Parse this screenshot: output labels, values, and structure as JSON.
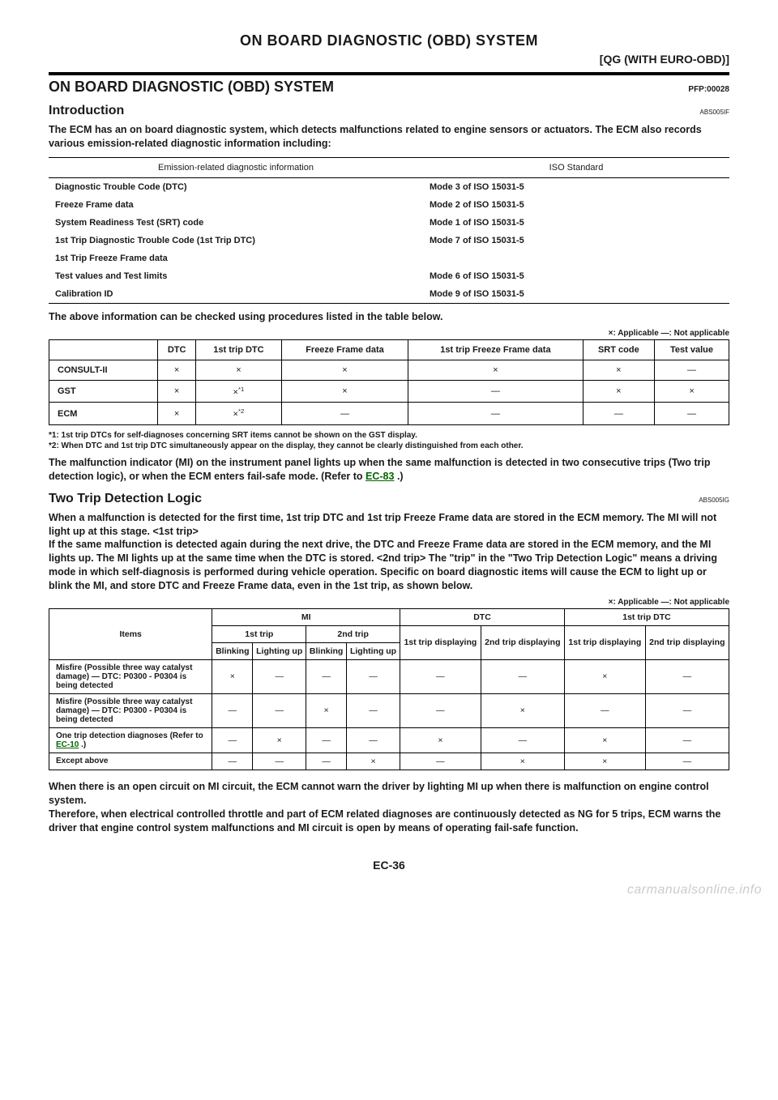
{
  "header": {
    "mainTitle": "ON BOARD DIAGNOSTIC (OBD) SYSTEM",
    "subTitle": "[QG (WITH EURO-OBD)]"
  },
  "section": {
    "title": "ON BOARD DIAGNOSTIC (OBD) SYSTEM",
    "pfp": "PFP:00028"
  },
  "intro": {
    "title": "Introduction",
    "code": "ABS005IF",
    "para": "The ECM has an on board diagnostic system, which detects malfunctions related to engine sensors or actuators. The ECM also records various emission-related diagnostic information including:"
  },
  "table1": {
    "headers": [
      "Emission-related diagnostic information",
      "ISO Standard"
    ],
    "rows": [
      [
        "Diagnostic Trouble Code (DTC)",
        "Mode 3 of ISO 15031-5"
      ],
      [
        "Freeze Frame data",
        "Mode 2 of ISO 15031-5"
      ],
      [
        "System Readiness Test (SRT) code",
        "Mode 1 of ISO 15031-5"
      ],
      [
        "1st Trip Diagnostic Trouble Code (1st Trip DTC)",
        "Mode 7 of ISO 15031-5"
      ],
      [
        "1st Trip Freeze Frame data",
        ""
      ],
      [
        "Test values and Test limits",
        "Mode 6 of ISO 15031-5"
      ],
      [
        "Calibration ID",
        "Mode 9 of ISO 15031-5"
      ]
    ]
  },
  "afterTable1": "The above information can be checked using procedures listed in the table below.",
  "legend": "×: Applicable    —: Not applicable",
  "table2": {
    "headers": [
      "",
      "DTC",
      "1st trip DTC",
      "Freeze Frame data",
      "1st trip Freeze Frame data",
      "SRT code",
      "Test value"
    ],
    "rows": [
      [
        "CONSULT-II",
        "×",
        "×",
        "×",
        "×",
        "×",
        "—"
      ],
      [
        "GST",
        "×",
        "×*1",
        "×",
        "—",
        "×",
        "×"
      ],
      [
        "ECM",
        "×",
        "×*2",
        "—",
        "—",
        "—",
        "—"
      ]
    ]
  },
  "footnotes": {
    "f1": "*1: 1st trip DTCs for self-diagnoses concerning SRT items cannot be shown on the GST display.",
    "f2": "*2: When DTC and 1st trip DTC simultaneously appear on the display, they cannot be clearly distinguished from each other."
  },
  "miPara": {
    "pre": "The malfunction indicator (MI) on the instrument panel lights up when the same malfunction is detected in two consecutive trips (Two trip detection logic), or when the ECM enters fail-safe mode. (Refer to ",
    "link": "EC-83",
    "post": " .)"
  },
  "twoTrip": {
    "title": "Two Trip Detection Logic",
    "code": "ABS005IG",
    "para": "When a malfunction is detected for the first time, 1st trip DTC and 1st trip Freeze Frame data are stored in the ECM memory. The MI will not light up at this stage. <1st trip>\nIf the same malfunction is detected again during the next drive, the DTC and Freeze Frame data are stored in the ECM memory, and the MI lights up. The MI lights up at the same time when the DTC is stored. <2nd trip> The \"trip\" in the \"Two Trip Detection Logic\" means a driving mode in which self-diagnosis is performed during vehicle operation. Specific on board diagnostic items will cause the ECM to light up or blink the MI, and store DTC and Freeze Frame data, even in the 1st trip, as shown below."
  },
  "table3": {
    "topHeaders": {
      "items": "Items",
      "mi": "MI",
      "dtc": "DTC",
      "firstTripDtc": "1st trip DTC"
    },
    "midHeaders": {
      "firstTrip": "1st trip",
      "secondTrip": "2nd trip",
      "firstTripDisp": "1st trip displaying",
      "secondTripDisp": "2nd trip displaying",
      "firstTripDisp2": "1st trip displaying",
      "secondTripDisp2": "2nd trip displaying"
    },
    "subHeaders": {
      "blinking": "Blinking",
      "lighting": "Lighting up"
    },
    "rows": [
      {
        "item": "Misfire (Possible three way catalyst damage) — DTC: P0300 - P0304 is being detected",
        "cells": [
          "×",
          "—",
          "—",
          "—",
          "—",
          "—",
          "×",
          "—"
        ]
      },
      {
        "item": "Misfire (Possible three way catalyst damage) — DTC: P0300 - P0304 is being detected",
        "cells": [
          "—",
          "—",
          "×",
          "—",
          "—",
          "×",
          "—",
          "—"
        ]
      },
      {
        "item_pre": "One trip detection diagnoses (Refer to ",
        "item_link": "EC-10",
        "item_post": " .)",
        "cells": [
          "—",
          "×",
          "—",
          "—",
          "×",
          "—",
          "×",
          "—"
        ]
      },
      {
        "item": "Except above",
        "cells": [
          "—",
          "—",
          "—",
          "×",
          "—",
          "×",
          "×",
          "—"
        ]
      }
    ]
  },
  "closingPara": "When there is an open circuit on MI circuit, the ECM cannot warn the driver by lighting MI up when there is malfunction on engine control system.\nTherefore, when electrical controlled throttle and part of ECM related diagnoses are continuously detected as NG for 5 trips, ECM warns the driver that engine control system malfunctions and MI circuit is open by means of operating fail-safe function.",
  "pageNumber": "EC-36",
  "watermark": "carmanualsonline.info"
}
